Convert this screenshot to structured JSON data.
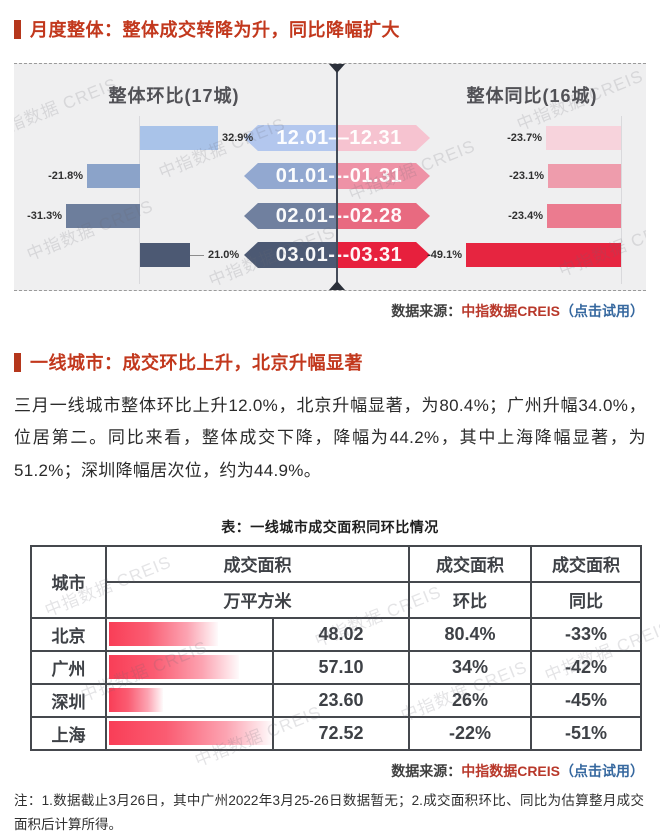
{
  "watermark": "中指数据 CREIS",
  "colors": {
    "accent_red": "#c2381d",
    "source_brand_red": "#b8382a",
    "source_link_blue": "#36689f",
    "mom_bar_blues": [
      "#a9c3e9",
      "#8ba3c9",
      "#6d7e9c",
      "#4c5973"
    ],
    "yoy_bar_pinks": [
      "#f7d3dc",
      "#ee9cac",
      "#eb7b8f",
      "#e62540"
    ],
    "chart_bg": "#efeff0",
    "table_border": "#45484d"
  },
  "section1": {
    "title": "月度整体：整体成交转降为升，同比降幅扩大"
  },
  "chart": {
    "left_title": "整体环比(17城)",
    "right_title": "整体同比(16城)",
    "rows": [
      {
        "period": "12.01—12.31",
        "mom": "32.9%",
        "yoy": "-23.7%"
      },
      {
        "period": "01.01---01.31",
        "mom": "-21.8%",
        "yoy": "-23.1%"
      },
      {
        "period": "02.01---02.28",
        "mom": "-31.3%",
        "yoy": "-23.4%"
      },
      {
        "period": "03.01---03.31",
        "mom": "21.0%",
        "yoy": "-49.1%"
      }
    ]
  },
  "source": {
    "prefix": "数据来源：",
    "brand": "中指数据CREIS",
    "link": "（点击试用）"
  },
  "section2": {
    "title": "一线城市：成交环比上升，北京升幅显著"
  },
  "paragraph": "三月一线城市整体环比上升12.0%，北京升幅显著，为80.4%；广州升幅34.0%，位居第二。同比来看，整体成交下降，降幅为44.2%，其中上海降幅显著，为51.2%；深圳降幅居次位，约为44.9%。",
  "table": {
    "caption": "表：一线城市成交面积同环比情况",
    "header": {
      "city": "城市",
      "area_top": "成交面积",
      "area_unit": "万平方米",
      "mom_top": "成交面积",
      "mom": "环比",
      "yoy_top": "成交面积",
      "yoy": "同比"
    },
    "rows": [
      {
        "city": "北京",
        "area": "48.02",
        "mom": "80.4%",
        "yoy": "-33%",
        "bar_pct": 66
      },
      {
        "city": "广州",
        "area": "57.10",
        "mom": "34%",
        "yoy": "-42%",
        "bar_pct": 79
      },
      {
        "city": "深圳",
        "area": "23.60",
        "mom": "26%",
        "yoy": "-45%",
        "bar_pct": 33
      },
      {
        "city": "上海",
        "area": "72.52",
        "mom": "-22%",
        "yoy": "-51%",
        "bar_pct": 99
      }
    ]
  },
  "note": "注：1.数据截止3月26日，其中广州2022年3月25-26日数据暂无；2.成交面积环比、同比为估算整月成交面积后计算所得。",
  "chart_data": [
    {
      "type": "bar",
      "orientation": "horizontal",
      "title": "整体环比(17城)",
      "categories": [
        "12.01—12.31",
        "01.01—01.31",
        "02.01—02.28",
        "03.01—03.31"
      ],
      "values": [
        32.9,
        -21.8,
        -31.3,
        21.0
      ],
      "unit": "%",
      "xlabel": "",
      "ylabel": "",
      "grid": false,
      "value_labels": [
        "32.9%",
        "-21.8%",
        "-31.3%",
        "21.0%"
      ]
    },
    {
      "type": "bar",
      "orientation": "horizontal",
      "title": "整体同比(16城)",
      "categories": [
        "12.01—12.31",
        "01.01—01.31",
        "02.01—02.28",
        "03.01—03.31"
      ],
      "values": [
        -23.7,
        -23.1,
        -23.4,
        -49.1
      ],
      "unit": "%",
      "xlabel": "",
      "ylabel": "",
      "grid": false,
      "value_labels": [
        "-23.7%",
        "-23.1%",
        "-23.4%",
        "-49.1%"
      ]
    },
    {
      "type": "table",
      "title": "表：一线城市成交面积同环比情况",
      "columns": [
        "城市",
        "成交面积 万平方米",
        "成交面积 环比",
        "成交面积 同比"
      ],
      "rows": [
        [
          "北京",
          48.02,
          "80.4%",
          "-33%"
        ],
        [
          "广州",
          57.1,
          "34%",
          "-42%"
        ],
        [
          "深圳",
          23.6,
          "26%",
          "-45%"
        ],
        [
          "上海",
          72.52,
          "-22%",
          "-51%"
        ]
      ]
    }
  ]
}
